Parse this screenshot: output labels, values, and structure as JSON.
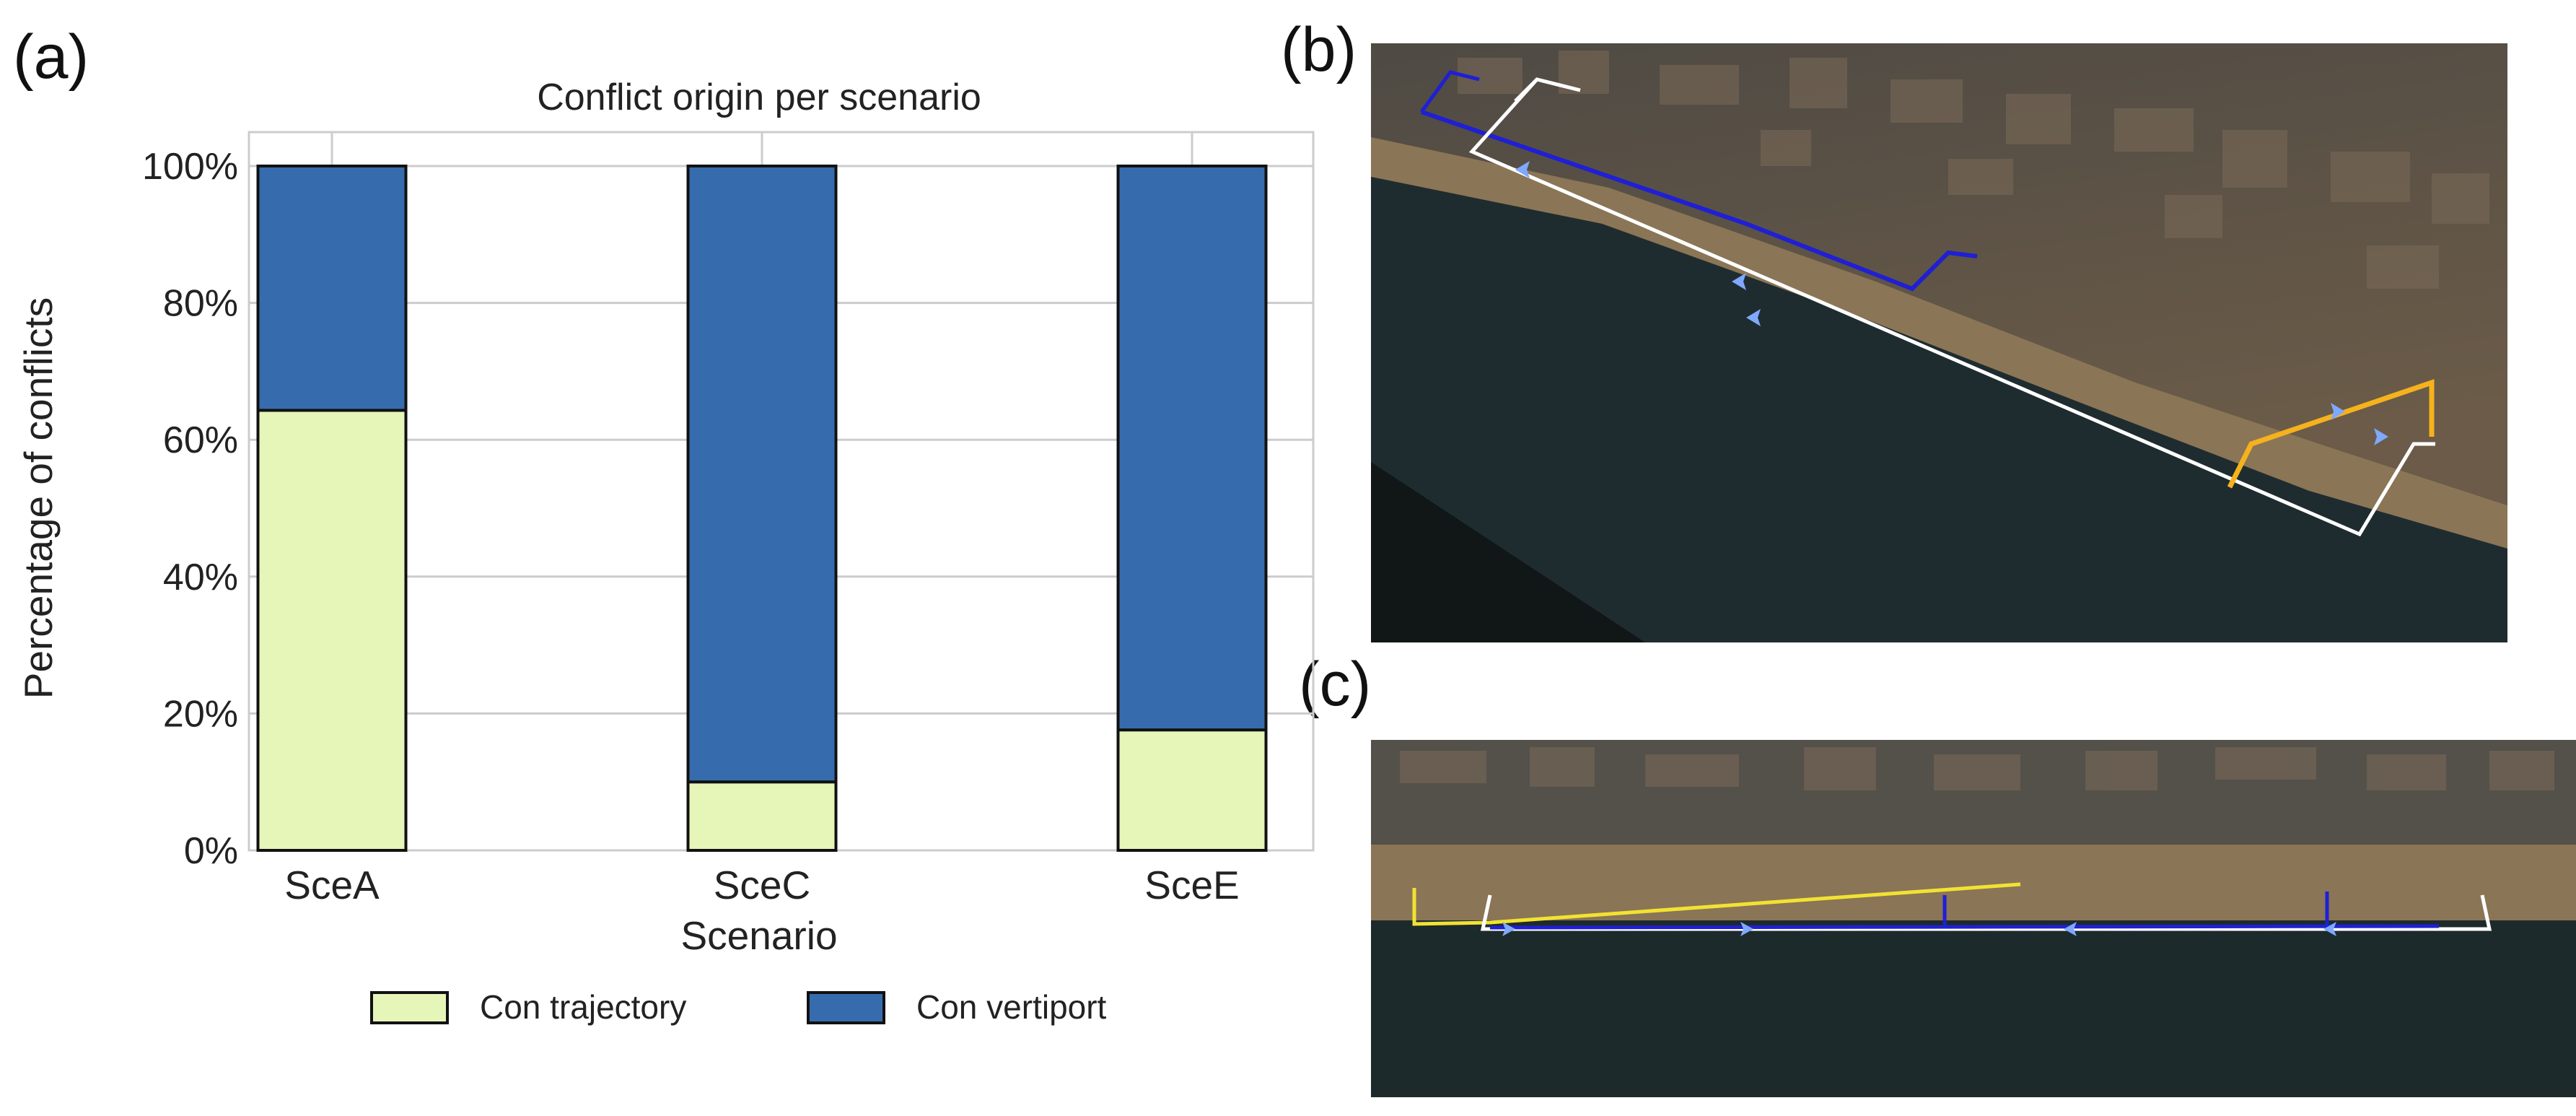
{
  "panels": {
    "a": "(a)",
    "b": "(b)",
    "c": "(c)"
  },
  "chart_data": {
    "type": "bar",
    "stacked": true,
    "percent": true,
    "title": "Conflict origin per scenario",
    "xlabel": "Scenario",
    "ylabel": "Percentage of conflicts",
    "categories": [
      "SceA",
      "SceC",
      "SceE"
    ],
    "ylim": [
      0,
      100
    ],
    "yticks": [
      0,
      20,
      40,
      60,
      80,
      100
    ],
    "ytick_labels": [
      "0%",
      "20%",
      "40%",
      "60%",
      "80%",
      "100%"
    ],
    "grid": true,
    "legend_position": "bottom",
    "series": [
      {
        "name": "Con trajectory",
        "values": [
          64.3,
          10.0,
          17.6
        ],
        "color": "#e6f5b8"
      },
      {
        "name": "Con vertiport",
        "values": [
          35.7,
          90.0,
          82.4
        ],
        "color": "#366cad"
      }
    ]
  },
  "maps": {
    "b": {
      "type": "satellite-image",
      "route_colors": [
        "#1f1fd4",
        "#ffffff",
        "#f5b21d"
      ]
    },
    "c": {
      "type": "satellite-image",
      "route_colors": [
        "#f2e233",
        "#ffffff",
        "#1f1fd4"
      ]
    }
  }
}
